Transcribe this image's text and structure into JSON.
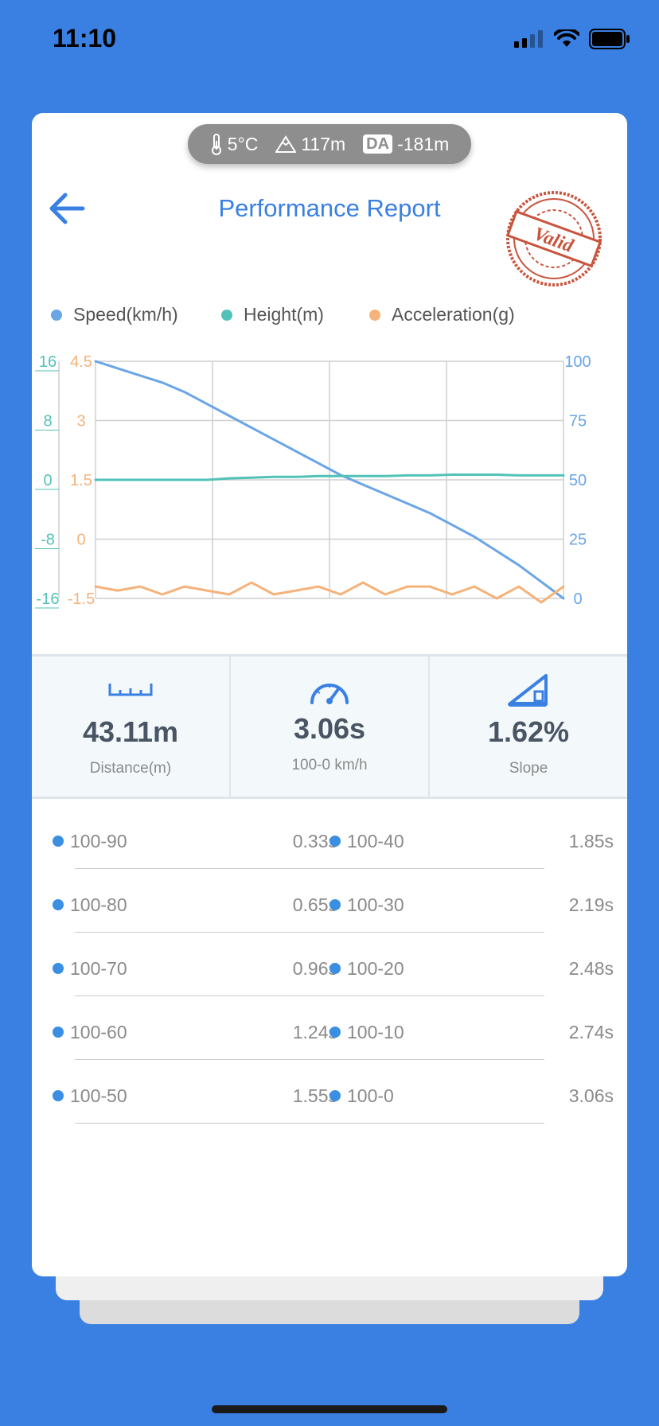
{
  "status": {
    "time": "11:10"
  },
  "environment": {
    "temperature": "5°C",
    "altitude": "117m",
    "da_label": "DA",
    "density_altitude": "-181m"
  },
  "header": {
    "title": "Performance Report",
    "stamp_text": "Valid"
  },
  "legend": [
    {
      "label": "Speed(km/h)",
      "color": "#6aa5e6"
    },
    {
      "label": "Height(m)",
      "color": "#52c2b8"
    },
    {
      "label": "Acceleration(g)",
      "color": "#f5b27a"
    }
  ],
  "chart_data": {
    "type": "line",
    "height_axis": {
      "ticks": [
        "16",
        "8",
        "0",
        "-8",
        "-16"
      ],
      "color": "#52c2b8"
    },
    "accel_axis": {
      "ticks": [
        "4.5",
        "3",
        "1.5",
        "0",
        "-1.5"
      ],
      "color": "#f5b27a"
    },
    "speed_axis": {
      "ticks": [
        "100",
        "75",
        "50",
        "25",
        "0"
      ],
      "color": "#6aa5e6"
    },
    "grid": true,
    "series": [
      {
        "axis": "speed",
        "color": "#6aa5e6",
        "values": [
          100,
          97,
          94,
          91,
          87,
          82,
          77,
          72,
          67,
          62,
          57,
          52,
          48,
          44,
          40,
          36,
          31,
          26,
          20,
          14,
          7,
          0
        ]
      },
      {
        "axis": "height",
        "color": "#52c2b8",
        "values": [
          0,
          0,
          0,
          0,
          0,
          0,
          0.2,
          0.3,
          0.4,
          0.4,
          0.5,
          0.5,
          0.5,
          0.5,
          0.6,
          0.6,
          0.7,
          0.7,
          0.7,
          0.6,
          0.6,
          0.6
        ]
      },
      {
        "axis": "accel",
        "color": "#f5b27a",
        "values": [
          -1.2,
          -1.3,
          -1.2,
          -1.4,
          -1.2,
          -1.3,
          -1.4,
          -1.1,
          -1.4,
          -1.3,
          -1.2,
          -1.4,
          -1.1,
          -1.4,
          -1.2,
          -1.2,
          -1.4,
          -1.2,
          -1.5,
          -1.2,
          -1.6,
          -1.2
        ]
      }
    ]
  },
  "stats": [
    {
      "icon": "ruler-icon",
      "value": "43.11m",
      "label": "Distance(m)"
    },
    {
      "icon": "speedometer-icon",
      "value": "3.06s",
      "label": "100-0 km/h"
    },
    {
      "icon": "slope-icon",
      "value": "1.62%",
      "label": "Slope"
    }
  ],
  "splits": [
    {
      "left_label": "100-90",
      "left_time": "0.33s",
      "right_label": "100-40",
      "right_time": "1.85s"
    },
    {
      "left_label": "100-80",
      "left_time": "0.65s",
      "right_label": "100-30",
      "right_time": "2.19s"
    },
    {
      "left_label": "100-70",
      "left_time": "0.96s",
      "right_label": "100-20",
      "right_time": "2.48s"
    },
    {
      "left_label": "100-60",
      "left_time": "1.24s",
      "right_label": "100-10",
      "right_time": "2.74s"
    },
    {
      "left_label": "100-50",
      "left_time": "1.55s",
      "right_label": "100-0",
      "right_time": "3.06s"
    }
  ]
}
